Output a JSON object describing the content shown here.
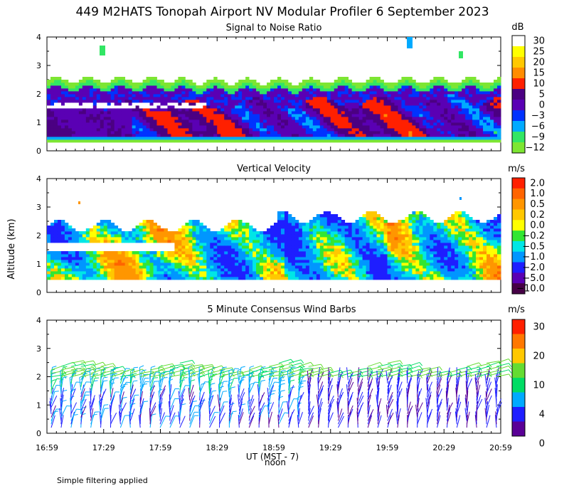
{
  "title": "449 M2HATS Tonopah Airport NV Modular Profiler  6 September 2023",
  "ylabel": "Altitude (km)",
  "xlabel": "UT  (MST - 7)",
  "noon_label": "noon",
  "footer": "Simple filtering applied",
  "x_ticks": [
    "16:59",
    "17:29",
    "17:59",
    "18:29",
    "18:59",
    "19:29",
    "19:59",
    "20:29",
    "20:59"
  ],
  "y_ticks": [
    "0",
    "1",
    "2",
    "3",
    "4"
  ],
  "chart_data": [
    {
      "type": "heatmap",
      "title": "Signal to Noise Ratio",
      "units": "dB",
      "xlim": [
        "16:59",
        "20:59"
      ],
      "ylim": [
        0,
        4
      ],
      "colorbar_labels": [
        "30",
        "25",
        "20",
        "15",
        "10",
        "5",
        "0",
        "−3",
        "−6",
        "−9",
        "−12"
      ],
      "colors": [
        "#ffffff",
        "#ffff00",
        "#ffc800",
        "#ff8c00",
        "#ff2000",
        "#4b0082",
        "#5a00b4",
        "#0032ff",
        "#00aaff",
        "#32e664",
        "#7de632"
      ],
      "profile": [
        {
          "alt_km": 2.45,
          "snr_db": -11
        },
        {
          "alt_km": 2.2,
          "snr_db": -7
        },
        {
          "alt_km": 1.9,
          "snr_db": 2
        },
        {
          "alt_km": 1.4,
          "snr_db": 10
        },
        {
          "alt_km": 0.9,
          "snr_db": 12
        },
        {
          "alt_km": 0.5,
          "snr_db": -5
        },
        {
          "alt_km": 0.35,
          "snr_db": -11
        }
      ]
    },
    {
      "type": "heatmap",
      "title": "Vertical Velocity",
      "units": "m/s",
      "xlim": [
        "16:59",
        "20:59"
      ],
      "ylim": [
        0,
        4
      ],
      "colorbar_labels": [
        "2.0",
        "1.0",
        "0.5",
        "0.2",
        "0.0",
        "−0.2",
        "−0.5",
        "−1.0",
        "−2.0",
        "−5.0",
        "−10.0"
      ],
      "colors": [
        "#ff2000",
        "#ff6400",
        "#ff9600",
        "#ffc800",
        "#ffff00",
        "#32e632",
        "#00e6e6",
        "#0096ff",
        "#1e1eff",
        "#5a00b4",
        "#460046"
      ]
    },
    {
      "type": "wind_barbs",
      "title": "5 Minute Consensus Wind Barbs",
      "units": "m/s",
      "xlim": [
        "16:59",
        "20:59"
      ],
      "ylim": [
        0,
        4
      ],
      "colorbar_labels": [
        "30",
        "20",
        "10",
        "4",
        "0"
      ],
      "colors": [
        "#ff2000",
        "#ff7800",
        "#ffc800",
        "#64dc32",
        "#00dc64",
        "#00aaff",
        "#1e1eff",
        "#5a0096"
      ],
      "profile": [
        {
          "alt_km": 2.3,
          "speed_ms": 10
        },
        {
          "alt_km": 2.0,
          "speed_ms": 9
        },
        {
          "alt_km": 1.5,
          "speed_ms": 6
        },
        {
          "alt_km": 1.0,
          "speed_ms": 4
        },
        {
          "alt_km": 0.4,
          "speed_ms": 3
        }
      ]
    }
  ]
}
